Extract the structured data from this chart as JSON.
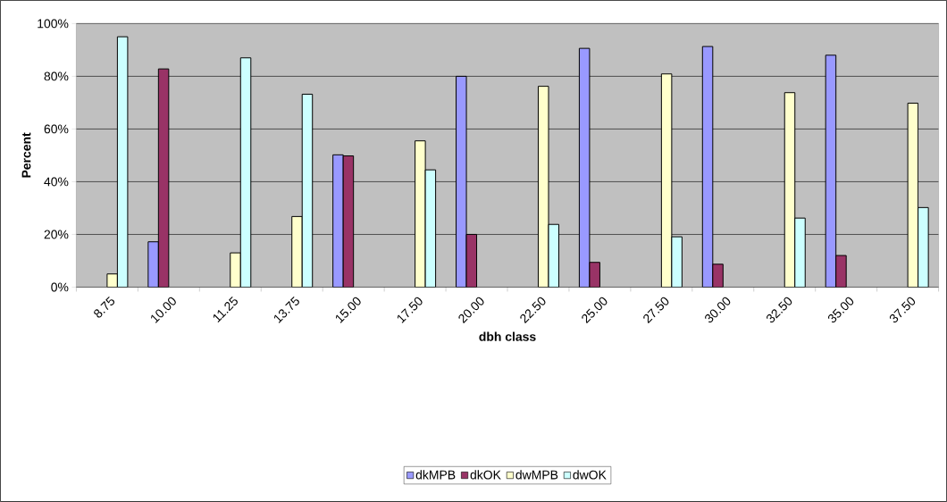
{
  "chart_data": {
    "type": "bar",
    "xlabel": "dbh class",
    "ylabel": "Percent",
    "categories": [
      "8.75",
      "10.00",
      "11.25",
      "13.75",
      "15.00",
      "17.50",
      "20.00",
      "22.50",
      "25.00",
      "27.50",
      "30.00",
      "32.50",
      "35.00",
      "37.50"
    ],
    "series": [
      {
        "name": "dkMPB",
        "color": "#9999ff",
        "values": [
          null,
          17.2,
          null,
          null,
          50.2,
          null,
          80,
          null,
          90.6,
          null,
          91.3,
          null,
          88,
          null
        ]
      },
      {
        "name": "dkOK",
        "color": "#993366",
        "values": [
          null,
          82.8,
          null,
          null,
          49.8,
          null,
          20,
          null,
          9.4,
          null,
          8.7,
          null,
          12,
          null
        ]
      },
      {
        "name": "dwMPB",
        "color": "#ffffcc",
        "values": [
          5,
          null,
          13,
          26.8,
          null,
          55.5,
          null,
          76.2,
          null,
          80.9,
          null,
          73.8,
          null,
          69.8
        ]
      },
      {
        "name": "dwOK",
        "color": "#ccffff",
        "values": [
          95,
          null,
          87,
          73.2,
          null,
          44.5,
          null,
          23.8,
          null,
          19.1,
          null,
          26.2,
          null,
          30.2
        ]
      }
    ],
    "ylim": [
      0,
      100
    ],
    "yticks": [
      {
        "value": 0,
        "label": "0%"
      },
      {
        "value": 20,
        "label": "20%"
      },
      {
        "value": 40,
        "label": "40%"
      },
      {
        "value": 60,
        "label": "60%"
      },
      {
        "value": 80,
        "label": "80%"
      },
      {
        "value": 100,
        "label": "100%"
      }
    ],
    "grid": "y",
    "legend": "bottom"
  }
}
